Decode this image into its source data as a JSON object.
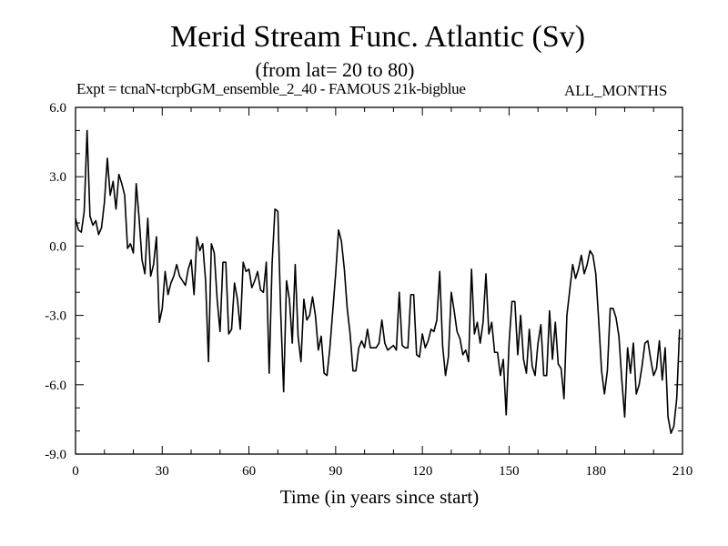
{
  "chart_data": {
    "type": "line",
    "title": "Merid Stream Func. Atlantic (Sv)",
    "subtitle": "(from lat= 20 to 80)",
    "expt_label": "Expt = tcnaN-tcrpbGM_ensemble_2_40 - FAMOUS 21k-bigblue",
    "months_label": "ALL_MONTHS",
    "xlabel": "Time (in years since start)",
    "ylabel": "",
    "xlim": [
      0,
      210
    ],
    "ylim": [
      -9.0,
      6.0
    ],
    "x_ticks": [
      0,
      30,
      60,
      90,
      120,
      150,
      180,
      210
    ],
    "x_tick_labels": [
      "0",
      "30",
      "60",
      "90",
      "120",
      "150",
      "180",
      "210"
    ],
    "y_ticks": [
      6.0,
      3.0,
      0.0,
      -3.0,
      -6.0,
      -9.0
    ],
    "y_tick_labels": [
      "6.0",
      "3.0",
      "0.0",
      "-3.0",
      "-6.0",
      "-9.0"
    ],
    "grid": false,
    "series": [
      {
        "name": "Merid Stream Func. Atlantic",
        "color": "#000000",
        "x_start": 0,
        "x_step": 1,
        "values": [
          1.2,
          0.7,
          0.6,
          1.5,
          5.0,
          1.3,
          0.9,
          1.1,
          0.5,
          0.8,
          1.9,
          3.8,
          2.2,
          2.8,
          1.6,
          3.1,
          2.7,
          2.2,
          -0.1,
          0.1,
          -0.3,
          2.7,
          1.2,
          -0.6,
          -1.2,
          1.2,
          -1.3,
          -0.8,
          0.4,
          -3.3,
          -2.7,
          -1.1,
          -2.1,
          -1.6,
          -1.3,
          -0.8,
          -1.3,
          -1.5,
          -1.7,
          -1.0,
          -0.6,
          -2.1,
          0.4,
          -0.2,
          0.1,
          -1.5,
          -5.0,
          0.1,
          -0.3,
          -2.3,
          -3.7,
          -0.7,
          -0.7,
          -3.8,
          -3.6,
          -1.6,
          -2.3,
          -3.6,
          -0.7,
          -1.1,
          -1.0,
          -1.8,
          -1.5,
          -1.1,
          -1.9,
          -2.0,
          -0.7,
          -5.5,
          -0.8,
          1.6,
          1.5,
          -2.9,
          -6.3,
          -1.5,
          -2.3,
          -4.2,
          -0.8,
          -3.9,
          -5.0,
          -2.3,
          -3.2,
          -3.0,
          -2.2,
          -3.0,
          -4.5,
          -3.9,
          -5.5,
          -5.6,
          -4.4,
          -2.8,
          -1.2,
          0.7,
          0.2,
          -1.0,
          -2.7,
          -3.8,
          -5.4,
          -5.4,
          -4.4,
          -4.1,
          -4.4,
          -3.6,
          -4.4,
          -4.4,
          -4.4,
          -4.2,
          -3.2,
          -4.2,
          -4.5,
          -4.4,
          -4.3,
          -4.5,
          -2.0,
          -4.3,
          -4.4,
          -4.4,
          -2.1,
          -2.1,
          -4.7,
          -4.8,
          -3.8,
          -4.4,
          -4.1,
          -3.6,
          -3.7,
          -3.2,
          -1.1,
          -4.3,
          -5.6,
          -4.8,
          -2.0,
          -2.8,
          -3.7,
          -4.0,
          -4.7,
          -4.5,
          -5.0,
          -1.0,
          -3.8,
          -3.3,
          -4.2,
          -3.3,
          -1.2,
          -3.8,
          -3.3,
          -4.6,
          -4.6,
          -5.6,
          -4.9,
          -7.3,
          -4.2,
          -2.4,
          -2.4,
          -4.7,
          -3.0,
          -4.9,
          -5.5,
          -3.6,
          -5.2,
          -5.6,
          -4.2,
          -3.4,
          -5.6,
          -5.6,
          -2.8,
          -4.9,
          -3.3,
          -5.1,
          -5.3,
          -6.6,
          -3.0,
          -1.9,
          -0.8,
          -1.4,
          -1.0,
          -0.4,
          -1.2,
          -0.8,
          -0.2,
          -0.4,
          -1.2,
          -3.2,
          -5.4,
          -6.4,
          -5.4,
          -2.7,
          -2.7,
          -3.1,
          -3.9,
          -5.8,
          -7.4,
          -4.4,
          -5.5,
          -4.2,
          -6.4,
          -6.0,
          -5.2,
          -4.2,
          -4.1,
          -4.9,
          -5.6,
          -5.3,
          -4.1,
          -5.8,
          -4.4,
          -7.4,
          -8.1,
          -7.8,
          -6.6,
          -3.6
        ]
      }
    ]
  }
}
